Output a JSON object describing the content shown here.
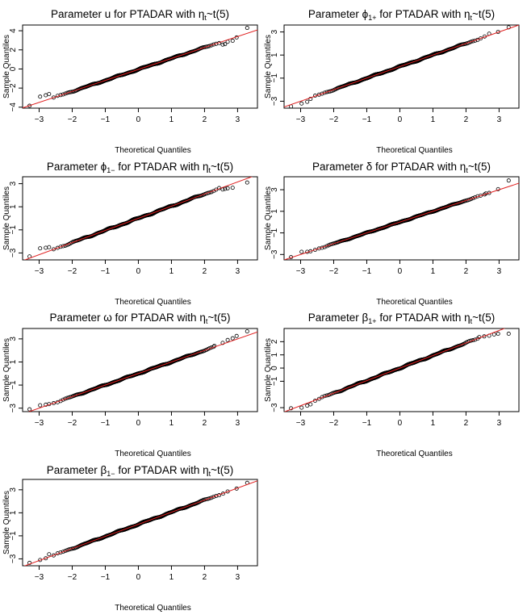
{
  "chart_data": [
    {
      "type": "scatter",
      "subtype": "qq-plot",
      "title": "Parameter u for PTADAR  with ηt~t(5)",
      "title_parts": {
        "before": "Parameter u for PTADAR  with η",
        "sub": "t",
        "after": "~t(5)"
      },
      "xlabel": "Theoretical Quantiles",
      "ylabel": "Sample Quantiles",
      "xlim": [
        -3.5,
        3.6
      ],
      "ylim": [
        -4.1,
        4.6
      ],
      "xticks": [
        -3,
        -2,
        -1,
        0,
        1,
        2,
        3
      ],
      "xtick_labels": [
        "−3",
        "−2",
        "−1",
        "0",
        "1",
        "2",
        "3"
      ],
      "yticks": [
        -4,
        -2,
        0,
        2,
        4
      ],
      "ytick_labels": [
        "−4",
        "−2",
        "0",
        "2",
        "4"
      ],
      "reference_line": {
        "slope": 1.15,
        "intercept": -0.05,
        "color": "#e02020"
      },
      "tails": {
        "low": [
          [
            -3.29,
            -3.85
          ],
          [
            -2.97,
            -2.9
          ],
          [
            -2.8,
            -2.75
          ],
          [
            -2.7,
            -2.62
          ]
        ],
        "high": [
          [
            2.55,
            2.55
          ],
          [
            2.62,
            2.6
          ],
          [
            2.7,
            2.85
          ],
          [
            2.85,
            2.95
          ],
          [
            2.97,
            3.3
          ],
          [
            3.29,
            4.3
          ]
        ]
      },
      "n_points": 480,
      "wiggle": 0.06,
      "grid": false,
      "legend": "none"
    },
    {
      "type": "scatter",
      "subtype": "qq-plot",
      "title": "Parameter ϕ1+  for PTADAR with ηt~t(5)",
      "title_parts": {
        "before": "Parameter ϕ",
        "sub": "1+",
        "after": "  for PTADAR with ηt~t(5)",
        "sub2_base": "Parameter ϕ"
      },
      "title_rich": [
        {
          "t": "Parameter ϕ"
        },
        {
          "t": "1+",
          "sub": true
        },
        {
          "t": "  for PTADAR with η"
        },
        {
          "t": "t",
          "sub": true
        },
        {
          "t": "~t(5)"
        }
      ],
      "xlabel": "Theoretical Quantiles",
      "ylabel": "Sample Quantiles",
      "xlim": [
        -3.5,
        3.6
      ],
      "ylim": [
        -3.6,
        3.6
      ],
      "xticks": [
        -3,
        -2,
        -1,
        0,
        1,
        2,
        3
      ],
      "xtick_labels": [
        "−3",
        "−2",
        "−1",
        "0",
        "1",
        "2",
        "3"
      ],
      "yticks": [
        -3,
        -1,
        1,
        3
      ],
      "ytick_labels": [
        "−3",
        "−1",
        "1",
        "3"
      ],
      "reference_line": {
        "slope": 1.0,
        "intercept": 0.0,
        "color": "#e02020"
      },
      "tails": {
        "low": [
          [
            -3.29,
            -3.45
          ],
          [
            -2.97,
            -3.2
          ],
          [
            -2.8,
            -3.05
          ],
          [
            -2.7,
            -2.8
          ]
        ],
        "high": [
          [
            2.7,
            2.85
          ],
          [
            2.97,
            3.0
          ],
          [
            3.29,
            3.4
          ]
        ]
      },
      "n_points": 480,
      "wiggle": 0.05,
      "grid": false,
      "legend": "none"
    },
    {
      "type": "scatter",
      "subtype": "qq-plot",
      "title": "Parameter ϕ1− for PTADAR  with ηt~t(5)",
      "title_rich": [
        {
          "t": "Parameter ϕ"
        },
        {
          "t": "1−",
          "sub": true
        },
        {
          "t": " for PTADAR  with η"
        },
        {
          "t": "t",
          "sub": true
        },
        {
          "t": "~t(5)"
        }
      ],
      "xlabel": "Theoretical Quantiles",
      "ylabel": "Sample Quantiles",
      "xlim": [
        -3.5,
        3.6
      ],
      "ylim": [
        -3.6,
        3.6
      ],
      "xticks": [
        -3,
        -2,
        -1,
        0,
        1,
        2,
        3
      ],
      "xtick_labels": [
        "−3",
        "−2",
        "−1",
        "0",
        "1",
        "2",
        "3"
      ],
      "yticks": [
        -3,
        -1,
        1,
        3
      ],
      "ytick_labels": [
        "−3",
        "−1",
        "1",
        "3"
      ],
      "reference_line": {
        "slope": 1.05,
        "intercept": 0.0,
        "color": "#e02020"
      },
      "tails": {
        "low": [
          [
            -3.29,
            -3.3
          ],
          [
            -2.97,
            -2.6
          ],
          [
            -2.8,
            -2.55
          ],
          [
            -2.7,
            -2.5
          ]
        ],
        "high": [
          [
            2.55,
            2.5
          ],
          [
            2.62,
            2.55
          ],
          [
            2.7,
            2.6
          ],
          [
            2.85,
            2.65
          ],
          [
            3.29,
            3.1
          ]
        ]
      },
      "n_points": 480,
      "wiggle": 0.06,
      "grid": false,
      "legend": "none"
    },
    {
      "type": "scatter",
      "subtype": "qq-plot",
      "title": "Parameter δ for PTADAR  with ηt~t(5)",
      "title_rich": [
        {
          "t": "Parameter δ for PTADAR  with η"
        },
        {
          "t": "t",
          "sub": true
        },
        {
          "t": "~t(5)"
        }
      ],
      "xlabel": "Theoretical Quantiles",
      "ylabel": "Sample Quantiles",
      "xlim": [
        -3.5,
        3.6
      ],
      "ylim": [
        -3.5,
        4.2
      ],
      "xticks": [
        -3,
        -2,
        -1,
        0,
        1,
        2,
        3
      ],
      "xtick_labels": [
        "−3",
        "−2",
        "−1",
        "0",
        "1",
        "2",
        "3"
      ],
      "yticks": [
        -3,
        -1,
        1,
        3
      ],
      "ytick_labels": [
        "−3",
        "−1",
        "1",
        "3"
      ],
      "reference_line": {
        "slope": 1.0,
        "intercept": 0.0,
        "color": "#e02020"
      },
      "tails": {
        "low": [
          [
            -3.29,
            -3.25
          ],
          [
            -2.97,
            -2.75
          ],
          [
            -2.8,
            -2.75
          ],
          [
            -2.7,
            -2.7
          ]
        ],
        "high": [
          [
            2.6,
            2.65
          ],
          [
            2.7,
            2.7
          ],
          [
            2.97,
            3.05
          ],
          [
            3.29,
            3.85
          ]
        ]
      },
      "n_points": 480,
      "wiggle": 0.04,
      "grid": false,
      "legend": "none"
    },
    {
      "type": "scatter",
      "subtype": "qq-plot",
      "title": "Parameter ω for PTADAR  with ηt~t(5)",
      "title_rich": [
        {
          "t": "Parameter ω for PTADAR  with η"
        },
        {
          "t": "t",
          "sub": true
        },
        {
          "t": "~t(5)"
        }
      ],
      "xlabel": "Theoretical Quantiles",
      "ylabel": "Sample Quantiles",
      "xlim": [
        -3.5,
        3.6
      ],
      "ylim": [
        -3.3,
        3.9
      ],
      "xticks": [
        -3,
        -2,
        -1,
        0,
        1,
        2,
        3
      ],
      "xtick_labels": [
        "−3",
        "−2",
        "−1",
        "0",
        "1",
        "2",
        "3"
      ],
      "yticks": [
        -3,
        -1,
        1,
        3
      ],
      "ytick_labels": [
        "−3",
        "−1",
        "1",
        "3"
      ],
      "reference_line": {
        "slope": 1.0,
        "intercept": 0.0,
        "color": "#e02020"
      },
      "tails": {
        "low": [
          [
            -3.29,
            -3.1
          ],
          [
            -2.97,
            -2.75
          ],
          [
            -2.8,
            -2.7
          ],
          [
            -2.7,
            -2.65
          ]
        ],
        "high": [
          [
            2.3,
            2.4
          ],
          [
            2.55,
            2.65
          ],
          [
            2.7,
            2.9
          ],
          [
            2.85,
            3.05
          ],
          [
            2.97,
            3.25
          ],
          [
            3.29,
            3.65
          ]
        ]
      },
      "n_points": 480,
      "wiggle": 0.05,
      "grid": false,
      "legend": "none"
    },
    {
      "type": "scatter",
      "subtype": "qq-plot",
      "title": "Parameter β1+ for PTADAR  with ηt~t(5)",
      "title_rich": [
        {
          "t": "Parameter β"
        },
        {
          "t": "1+",
          "sub": true
        },
        {
          "t": " for PTADAR  with η"
        },
        {
          "t": "t",
          "sub": true
        },
        {
          "t": "~t(5)"
        }
      ],
      "xlabel": "Theoretical Quantiles",
      "ylabel": "Sample Quantiles",
      "xlim": [
        -3.5,
        3.6
      ],
      "ylim": [
        -3.3,
        3.0
      ],
      "xticks": [
        -3,
        -2,
        -1,
        0,
        1,
        2,
        3
      ],
      "xtick_labels": [
        "−3",
        "−2",
        "−1",
        "0",
        "1",
        "2",
        "3"
      ],
      "yticks": [
        -3,
        -1,
        0,
        1,
        2
      ],
      "ytick_labels": [
        "−3",
        "−1",
        "0",
        "1",
        "2"
      ],
      "reference_line": {
        "slope": 0.95,
        "intercept": 0.0,
        "color": "#e02020"
      },
      "tails": {
        "low": [
          [
            -3.29,
            -3.05
          ],
          [
            -2.97,
            -3.0
          ],
          [
            -2.8,
            -2.85
          ],
          [
            -2.7,
            -2.75
          ]
        ],
        "high": [
          [
            2.4,
            2.35
          ],
          [
            2.55,
            2.4
          ],
          [
            2.7,
            2.45
          ],
          [
            2.85,
            2.55
          ],
          [
            2.97,
            2.6
          ],
          [
            3.29,
            2.6
          ]
        ]
      },
      "n_points": 480,
      "wiggle": 0.05,
      "grid": false,
      "legend": "none"
    },
    {
      "type": "scatter",
      "subtype": "qq-plot",
      "title": "Parameter β1− for PTADAR  with ηt~t(5)",
      "title_rich": [
        {
          "t": "Parameter β"
        },
        {
          "t": "1−",
          "sub": true
        },
        {
          "t": " for PTADAR  with η"
        },
        {
          "t": "t",
          "sub": true
        },
        {
          "t": "~t(5)"
        }
      ],
      "xlabel": "Theoretical Quantiles",
      "ylabel": "Sample Quantiles",
      "xlim": [
        -3.5,
        3.6
      ],
      "ylim": [
        -3.6,
        3.9
      ],
      "xticks": [
        -3,
        -2,
        -1,
        0,
        1,
        2,
        3
      ],
      "xtick_labels": [
        "−3",
        "−2",
        "−1",
        "0",
        "1",
        "2",
        "3"
      ],
      "yticks": [
        -3,
        -1,
        1,
        3
      ],
      "ytick_labels": [
        "−3",
        "−1",
        "1",
        "3"
      ],
      "reference_line": {
        "slope": 1.05,
        "intercept": 0.0,
        "color": "#e02020"
      },
      "tails": {
        "low": [
          [
            -3.29,
            -3.35
          ],
          [
            -2.97,
            -3.1
          ],
          [
            -2.8,
            -2.95
          ],
          [
            -2.7,
            -2.6
          ]
        ],
        "high": [
          [
            2.7,
            2.85
          ],
          [
            2.97,
            3.1
          ],
          [
            3.29,
            3.6
          ]
        ]
      },
      "n_points": 480,
      "wiggle": 0.05,
      "grid": false,
      "legend": "none"
    }
  ],
  "colors": {
    "points": "#000000",
    "line": "#e02020",
    "axes": "#000000",
    "background": "#ffffff"
  }
}
